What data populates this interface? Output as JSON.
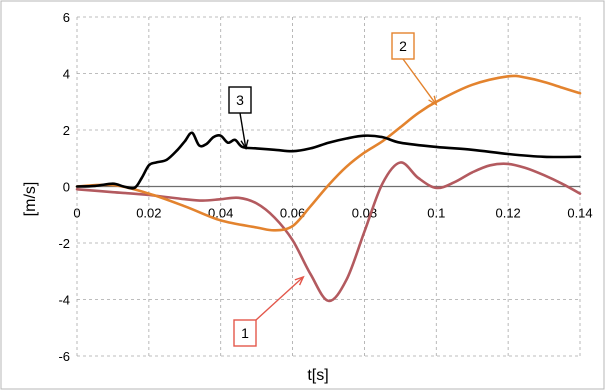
{
  "chart_data": {
    "type": "line",
    "xlabel": "t[s]",
    "ylabel": "[m/s]",
    "xlim": [
      0,
      0.14
    ],
    "ylim": [
      -6,
      6
    ],
    "grid": true,
    "x_ticks": [
      "0",
      "0.02",
      "0.04",
      "0.06",
      "0.08",
      "0.1",
      "0.12",
      "0.14"
    ],
    "y_ticks": [
      "6",
      "4",
      "2",
      "0",
      "-2",
      "-4",
      "-6"
    ],
    "series": [
      {
        "name": "1",
        "color": "#b35a5f",
        "x": [
          0,
          0.01,
          0.02,
          0.03,
          0.035,
          0.04,
          0.045,
          0.05,
          0.055,
          0.06,
          0.065,
          0.07,
          0.075,
          0.08,
          0.085,
          0.09,
          0.095,
          0.1,
          0.105,
          0.11,
          0.115,
          0.12,
          0.125,
          0.13,
          0.135,
          0.14
        ],
        "y": [
          -0.1,
          -0.2,
          -0.3,
          -0.45,
          -0.5,
          -0.45,
          -0.4,
          -0.6,
          -1.1,
          -1.9,
          -3.1,
          -4.05,
          -3.3,
          -1.6,
          0.1,
          0.85,
          0.3,
          -0.05,
          0.15,
          0.5,
          0.75,
          0.8,
          0.65,
          0.4,
          0.1,
          -0.25
        ]
      },
      {
        "name": "2",
        "color": "#e3832e",
        "x": [
          0,
          0.01,
          0.02,
          0.03,
          0.04,
          0.05,
          0.055,
          0.06,
          0.065,
          0.07,
          0.075,
          0.08,
          0.085,
          0.09,
          0.095,
          0.1,
          0.11,
          0.12,
          0.125,
          0.13,
          0.135,
          0.14
        ],
        "y": [
          0,
          0.05,
          -0.25,
          -0.7,
          -1.2,
          -1.45,
          -1.55,
          -1.4,
          -0.7,
          0.05,
          0.7,
          1.2,
          1.6,
          2.1,
          2.6,
          3.0,
          3.6,
          3.9,
          3.85,
          3.7,
          3.5,
          3.3
        ]
      },
      {
        "name": "3",
        "color": "#000000",
        "x": [
          0,
          0.005,
          0.01,
          0.013,
          0.016,
          0.018,
          0.02,
          0.022,
          0.025,
          0.028,
          0.03,
          0.032,
          0.034,
          0.036,
          0.038,
          0.04,
          0.042,
          0.044,
          0.046,
          0.05,
          0.055,
          0.06,
          0.065,
          0.07,
          0.075,
          0.08,
          0.085,
          0.09,
          0.1,
          0.11,
          0.12,
          0.13,
          0.14
        ],
        "y": [
          0,
          0.02,
          0.1,
          0.0,
          -0.05,
          0.3,
          0.75,
          0.85,
          0.95,
          1.3,
          1.6,
          1.9,
          1.45,
          1.5,
          1.75,
          1.8,
          1.55,
          1.65,
          1.4,
          1.35,
          1.3,
          1.25,
          1.35,
          1.55,
          1.7,
          1.8,
          1.75,
          1.55,
          1.4,
          1.3,
          1.15,
          1.05,
          1.05
        ]
      }
    ],
    "callouts": [
      {
        "label": "1",
        "color": "#e3574b",
        "point": [
          0.063,
          -3.2
        ]
      },
      {
        "label": "2",
        "color": "#e3832e",
        "point": [
          0.1,
          2.9
        ]
      },
      {
        "label": "3",
        "color": "#000000",
        "point": [
          0.047,
          1.35
        ]
      }
    ]
  }
}
